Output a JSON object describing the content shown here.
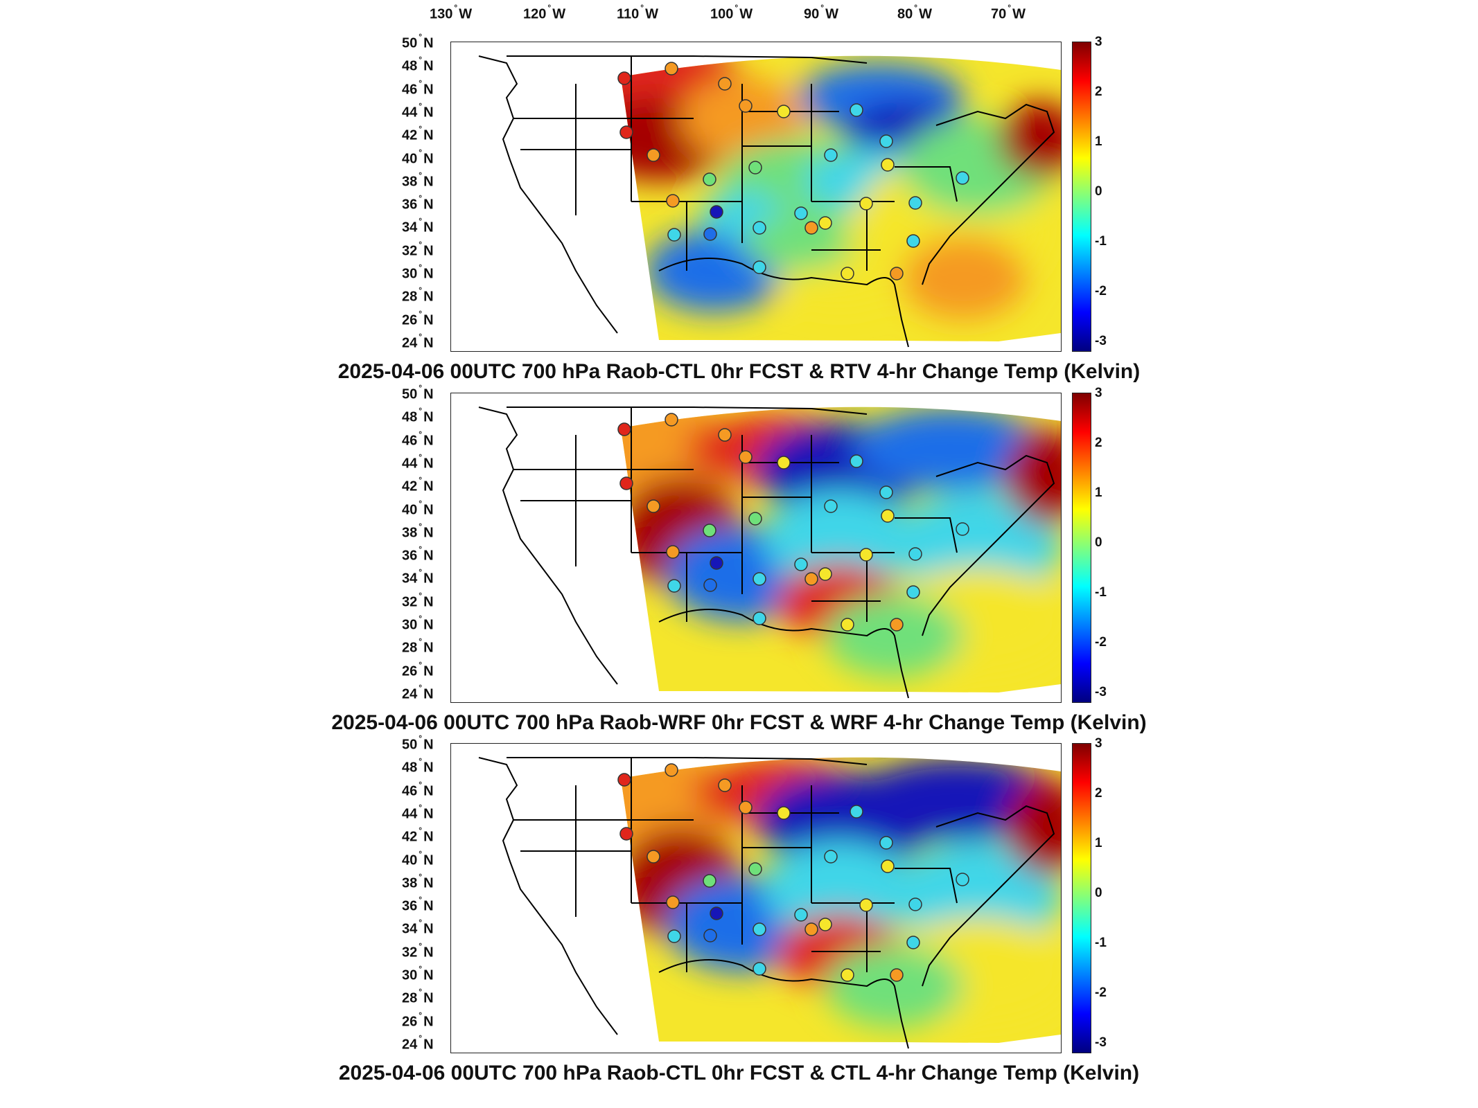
{
  "lon_labels": [
    {
      "deg": "130",
      "hemi": "W"
    },
    {
      "deg": "120",
      "hemi": "W"
    },
    {
      "deg": "110",
      "hemi": "W"
    },
    {
      "deg": "100",
      "hemi": "W"
    },
    {
      "deg": "90",
      "hemi": "W"
    },
    {
      "deg": "80",
      "hemi": "W"
    },
    {
      "deg": "70",
      "hemi": "W"
    }
  ],
  "lat_labels": [
    {
      "deg": "50",
      "hemi": "N"
    },
    {
      "deg": "48",
      "hemi": "N"
    },
    {
      "deg": "46",
      "hemi": "N"
    },
    {
      "deg": "44",
      "hemi": "N"
    },
    {
      "deg": "42",
      "hemi": "N"
    },
    {
      "deg": "40",
      "hemi": "N"
    },
    {
      "deg": "38",
      "hemi": "N"
    },
    {
      "deg": "36",
      "hemi": "N"
    },
    {
      "deg": "34",
      "hemi": "N"
    },
    {
      "deg": "32",
      "hemi": "N"
    },
    {
      "deg": "30",
      "hemi": "N"
    },
    {
      "deg": "28",
      "hemi": "N"
    },
    {
      "deg": "26",
      "hemi": "N"
    },
    {
      "deg": "24",
      "hemi": "N"
    }
  ],
  "colorbar": {
    "ticks": [
      "3",
      "2",
      "1",
      "0",
      "-1",
      "-2",
      "-3"
    ],
    "range": [
      -3,
      3
    ],
    "colormap": [
      "#00007f",
      "#0000ff",
      "#007fff",
      "#00ffff",
      "#7fff7f",
      "#ffff00",
      "#ff7f00",
      "#ff0000",
      "#7f0000"
    ]
  },
  "panels": [
    {
      "caption": "2025-04-06 00UTC 700 hPa Raob-CTL 0hr FCST & RTV 4-hr Change Temp (Kelvin)"
    },
    {
      "caption": "2025-04-06 00UTC 700 hPa Raob-WRF 0hr FCST & WRF 4-hr Change Temp (Kelvin)"
    },
    {
      "caption": "2025-04-06 00UTC 700 hPa Raob-CTL 0hr FCST & CTL 4-hr Change Temp (Kelvin)"
    }
  ],
  "colors": {
    "dark_red": "#a50000",
    "red": "#e0261b",
    "orange": "#f59a23",
    "yellow": "#f5e62b",
    "green": "#6fe07a",
    "cyan": "#3fd6e8",
    "blue": "#1f6ee8",
    "dark_blue": "#1616b8",
    "border": "#000000"
  }
}
